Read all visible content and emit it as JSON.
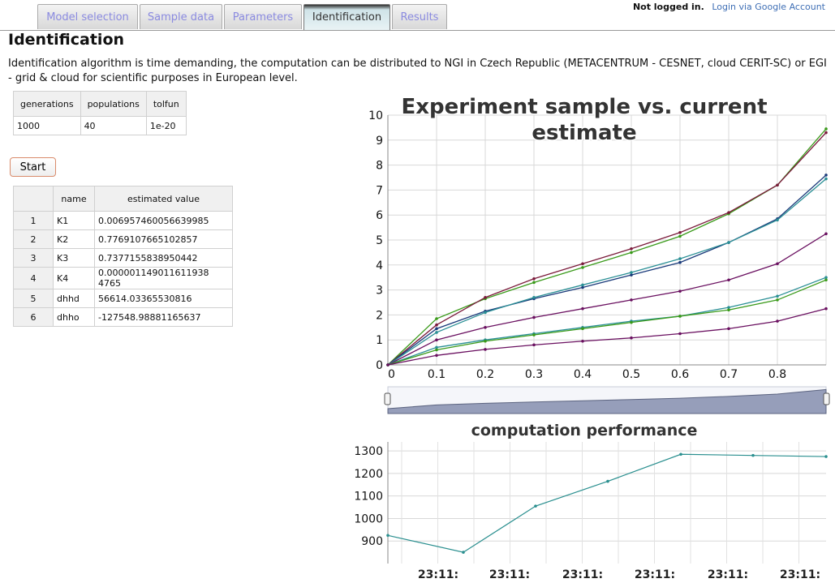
{
  "tabs": [
    {
      "label": "Model selection",
      "active": false
    },
    {
      "label": "Sample data",
      "active": false
    },
    {
      "label": "Parameters",
      "active": false
    },
    {
      "label": "Identification",
      "active": true
    },
    {
      "label": "Results",
      "active": false
    }
  ],
  "auth": {
    "status": "Not logged in.",
    "login_link": "Login via Google Account"
  },
  "page": {
    "title": "Identification",
    "description": "Identification algorithm is time demanding, the computation can be distributed to NGI in Czech Republic (METACENTRUM - CESNET, cloud CERIT-SC) or EGI - grid & cloud for scientific purposes in European level."
  },
  "params_table": {
    "headers": [
      "generations",
      "populations",
      "tolfun"
    ],
    "values": [
      "1000",
      "40",
      "1e-20"
    ]
  },
  "start_button": "Start",
  "results_table": {
    "headers": [
      "",
      "name",
      "estimated value"
    ],
    "rows": [
      [
        "1",
        "K1",
        "0.006957460056639985"
      ],
      [
        "2",
        "K2",
        "0.7769107665102857"
      ],
      [
        "3",
        "K3",
        "0.7377155838950442"
      ],
      [
        "4",
        "K4",
        "0.000001149011611938​4765"
      ],
      [
        "5",
        "dhhd",
        "56614.03365530816"
      ],
      [
        "6",
        "dhho",
        "-127548.98881165637"
      ]
    ]
  },
  "colors": {
    "green": "#3a9a1a",
    "maroon": "#7a1a3a",
    "navy": "#1a3a7a",
    "teal": "#2a8f95",
    "purple": "#6a1060",
    "perf_line": "#2a8f8f"
  },
  "chart_data": [
    {
      "type": "line",
      "title": "Experiment sample vs. current estimate",
      "xlabel": "",
      "ylabel": "",
      "xlim": [
        0,
        0.9
      ],
      "ylim": [
        0,
        10
      ],
      "x_ticks": [
        "0",
        "0.1",
        "0.2",
        "0.3",
        "0.4",
        "0.5",
        "0.6",
        "0.7",
        "0.8"
      ],
      "y_ticks": [
        "0",
        "1",
        "2",
        "3",
        "4",
        "5",
        "6",
        "7",
        "8",
        "9",
        "10"
      ],
      "grid": true,
      "x": [
        0,
        0.1,
        0.2,
        0.3,
        0.4,
        0.5,
        0.6,
        0.7,
        0.8,
        0.9
      ],
      "series": [
        {
          "color": "green",
          "values": [
            0,
            1.85,
            2.65,
            3.3,
            3.9,
            4.5,
            5.15,
            6.05,
            7.2,
            9.45
          ]
        },
        {
          "color": "maroon",
          "values": [
            0,
            1.6,
            2.7,
            3.45,
            4.05,
            4.65,
            5.3,
            6.1,
            7.2,
            9.3
          ]
        },
        {
          "color": "navy",
          "values": [
            0,
            1.45,
            2.15,
            2.65,
            3.1,
            3.6,
            4.1,
            4.9,
            5.85,
            7.6
          ]
        },
        {
          "color": "teal",
          "values": [
            0,
            1.3,
            2.1,
            2.7,
            3.2,
            3.7,
            4.25,
            4.9,
            5.8,
            7.45
          ]
        },
        {
          "color": "purple",
          "values": [
            0,
            1.0,
            1.5,
            1.9,
            2.25,
            2.6,
            2.95,
            3.4,
            4.05,
            5.25
          ]
        },
        {
          "color": "teal",
          "values": [
            0,
            0.7,
            1.0,
            1.25,
            1.5,
            1.75,
            1.95,
            2.3,
            2.75,
            3.5
          ]
        },
        {
          "color": "green",
          "values": [
            0,
            0.6,
            0.95,
            1.2,
            1.45,
            1.7,
            1.95,
            2.2,
            2.6,
            3.4
          ]
        },
        {
          "color": "purple",
          "values": [
            0,
            0.38,
            0.62,
            0.8,
            0.95,
            1.08,
            1.25,
            1.45,
            1.75,
            2.25
          ]
        }
      ]
    },
    {
      "type": "line",
      "title": "computation performance",
      "xlabel": "",
      "ylabel": "",
      "ylim": [
        800,
        1340
      ],
      "y_ticks": [
        "900",
        "1000",
        "1100",
        "1200",
        "1300"
      ],
      "x_ticks": [
        "23:11:",
        "23:11:",
        "23:11:",
        "23:11:",
        "23:11:",
        "23:11:"
      ],
      "grid": true,
      "x": [
        0,
        1,
        2,
        3,
        4,
        5,
        6
      ],
      "values": [
        925,
        850,
        1055,
        1165,
        1285,
        1280,
        1275
      ]
    }
  ]
}
